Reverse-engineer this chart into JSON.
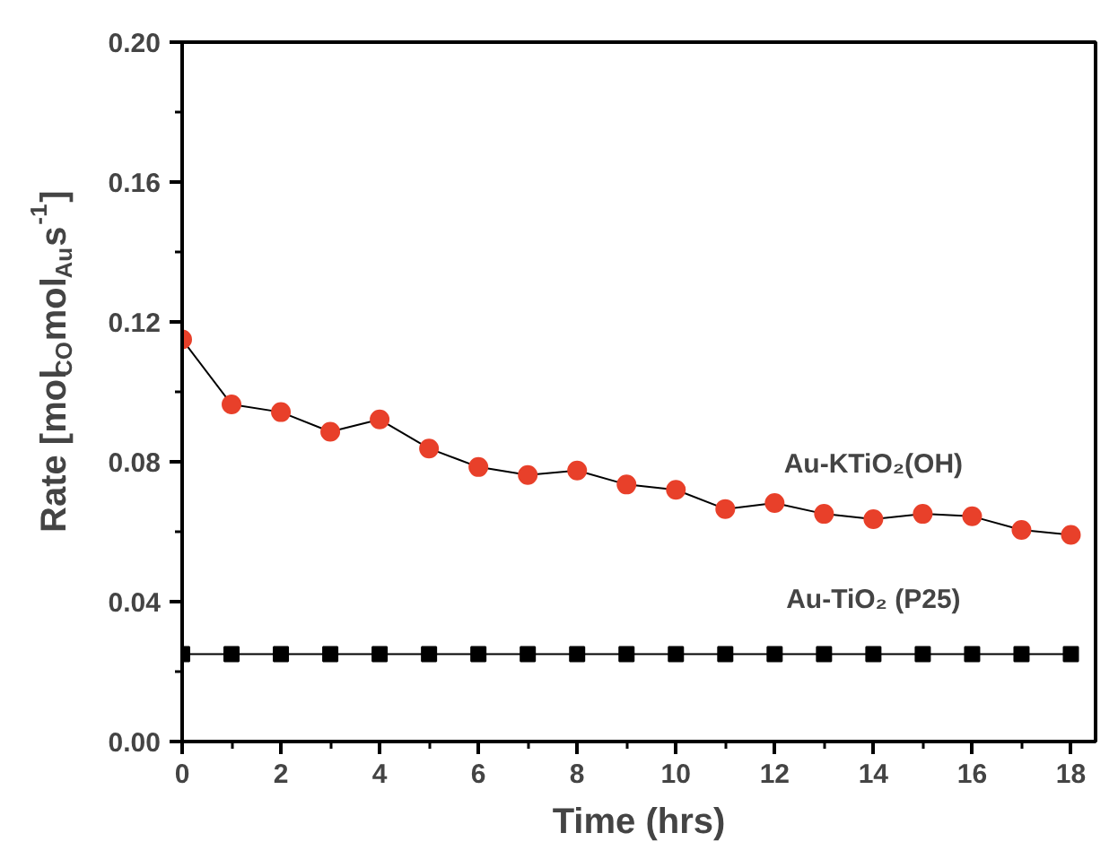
{
  "chart_data": {
    "type": "line",
    "xlabel": "Time (hrs)",
    "ylabel": "Rate [mol$_{CO}$mol$_{Au}$s$^{-1}$]",
    "x": [
      0,
      1,
      2,
      3,
      4,
      5,
      6,
      7,
      8,
      9,
      10,
      11,
      12,
      13,
      14,
      15,
      16,
      17,
      18
    ],
    "series": [
      {
        "name": "Au-KTiO₂(OH)",
        "color": "#e8402a",
        "marker": "circle",
        "values": [
          0.115,
          0.0964,
          0.0942,
          0.0886,
          0.0921,
          0.0838,
          0.0785,
          0.0762,
          0.0775,
          0.0735,
          0.072,
          0.0665,
          0.0682,
          0.0651,
          0.0636,
          0.0651,
          0.0644,
          0.0605,
          0.0591
        ]
      },
      {
        "name": "Au-TiO₂ (P25)",
        "color": "#000000",
        "marker": "square",
        "values": [
          0.025,
          0.025,
          0.025,
          0.025,
          0.025,
          0.025,
          0.025,
          0.025,
          0.025,
          0.025,
          0.025,
          0.025,
          0.025,
          0.025,
          0.025,
          0.025,
          0.025,
          0.025,
          0.025
        ]
      }
    ],
    "xlim": [
      0,
      18.5
    ],
    "ylim": [
      0,
      0.2
    ],
    "xticks": [
      0,
      2,
      4,
      6,
      8,
      10,
      12,
      14,
      16,
      18
    ],
    "yticks": [
      {
        "value": 0,
        "label": "0.00"
      },
      {
        "value": 0.04,
        "label": "0.04"
      },
      {
        "value": 0.08,
        "label": "0.08"
      },
      {
        "value": 0.12,
        "label": "0.12"
      },
      {
        "value": 0.16,
        "label": "0.16"
      },
      {
        "value": 0.2,
        "label": "0.20"
      }
    ],
    "grid": false,
    "line_style": "solid"
  }
}
